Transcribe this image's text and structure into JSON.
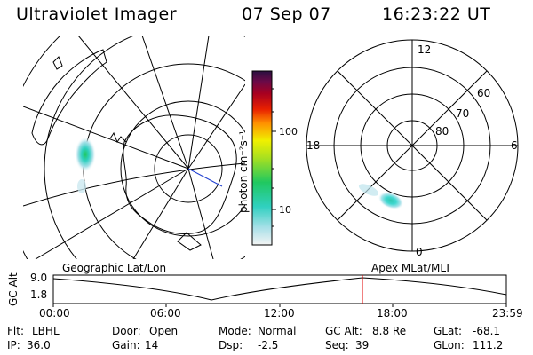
{
  "header": {
    "title": "Ultraviolet Imager",
    "date": "07 Sep 07",
    "time": "16:23:22 UT"
  },
  "colorbar": {
    "label": "photon cm⁻²s⁻¹",
    "ticks": [
      "100",
      "10"
    ]
  },
  "polar_plot": {
    "mlt_labels": [
      "12",
      "18",
      "6",
      "0"
    ],
    "lat_labels": [
      "60",
      "70",
      "80"
    ]
  },
  "subtitles": {
    "left": "Geographic Lat/Lon",
    "right": "Apex MLat/MLT"
  },
  "altitude_panel": {
    "ylabel": "GC Alt",
    "yticks": [
      "9.0",
      "1.8"
    ],
    "xticks": [
      "00:00",
      "06:00",
      "12:00",
      "18:00",
      "23:59"
    ]
  },
  "footer": {
    "row1": [
      {
        "key": "Flt:",
        "value": "LBHL"
      },
      {
        "key": "Door:",
        "value": "Open"
      },
      {
        "key": "Mode:",
        "value": "Normal"
      },
      {
        "key": "GC Alt:",
        "value": "8.8 Re"
      },
      {
        "key": "GLat:",
        "value": "-68.1"
      }
    ],
    "row2": [
      {
        "key": "IP:",
        "value": "36.0"
      },
      {
        "key": "Gain:",
        "value": "14"
      },
      {
        "key": "Dsp:",
        "value": "-2.5"
      },
      {
        "key": "Seq:",
        "value": "39"
      },
      {
        "key": "GLon:",
        "value": "111.2"
      }
    ]
  },
  "colors": {
    "orbit_marker": "#e00000",
    "grid": "#000000"
  }
}
